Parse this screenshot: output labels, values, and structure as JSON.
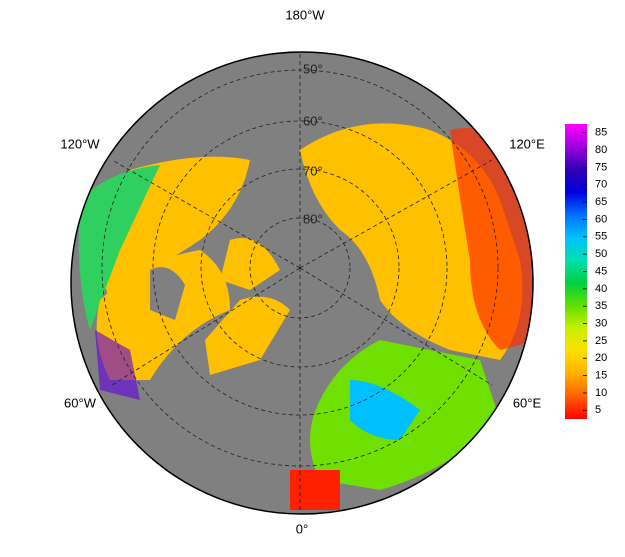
{
  "map": {
    "longitude_labels": {
      "top": "180°W",
      "upper_right": "120°E",
      "lower_right": "60°E",
      "bottom": "0°",
      "lower_left": "60°W",
      "upper_left": "120°W"
    },
    "latitude_labels": [
      "50°",
      "60°",
      "70°",
      "80°"
    ],
    "colorbar": {
      "ticks": [
        5,
        10,
        15,
        20,
        25,
        30,
        35,
        40,
        45,
        50,
        55,
        60,
        65,
        70,
        75,
        80,
        85
      ],
      "limits": [
        2.5,
        87.5
      ],
      "colors": [
        "#ff0000",
        "#ff6000",
        "#ffb000",
        "#ffe000",
        "#c8f000",
        "#60e000",
        "#00d040",
        "#00e0b0",
        "#00c0ff",
        "#0070ff",
        "#0000e0",
        "#3000b0",
        "#a000e0",
        "#ff00ff"
      ]
    }
  }
}
